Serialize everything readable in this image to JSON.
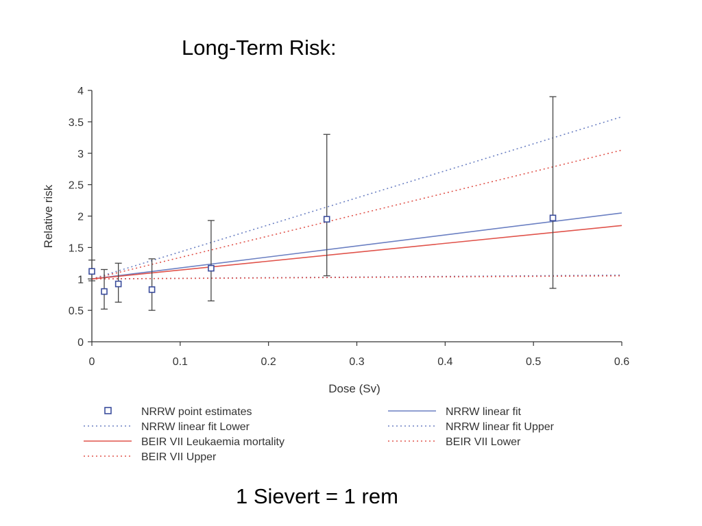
{
  "slide": {
    "title": "Long-Term Risk:",
    "footer": "1 Sievert = 1 rem"
  },
  "colors": {
    "blue": "#6a7fc2",
    "red": "#e0524a",
    "axis": "#333333",
    "marker": "#3a4c9c",
    "errorbar": "#444444"
  },
  "chart_data": {
    "type": "scatter",
    "title": "",
    "xlabel": "Dose (Sv)",
    "ylabel": "Relative risk",
    "xlim": [
      0,
      0.6
    ],
    "ylim": [
      0,
      4
    ],
    "xticks": [
      0,
      0.1,
      0.2,
      0.3,
      0.4,
      0.5,
      0.6
    ],
    "xtick_labels": [
      "0",
      "0.1",
      "0.2",
      "0.3",
      "0.4",
      "0.5",
      "0.6"
    ],
    "yticks": [
      0,
      0.5,
      1,
      1.5,
      2,
      2.5,
      3,
      3.5,
      4
    ],
    "ytick_labels": [
      "0",
      "0.5",
      "1",
      "1.5",
      "2",
      "2.5",
      "3",
      "3.5",
      "4"
    ],
    "grid": false,
    "points": {
      "name": "NRRW point estimates",
      "x": [
        0,
        0.014,
        0.03,
        0.068,
        0.135,
        0.266,
        0.522
      ],
      "y": [
        1.12,
        0.8,
        0.92,
        0.83,
        1.17,
        1.95,
        1.97
      ],
      "lower": [
        0.97,
        0.52,
        0.63,
        0.5,
        0.65,
        1.05,
        0.85
      ],
      "upper": [
        1.3,
        1.15,
        1.25,
        1.32,
        1.93,
        3.3,
        3.9
      ]
    },
    "series": [
      {
        "name": "NRRW linear fit",
        "style": "solid",
        "color": "blue",
        "x": [
          0,
          0.6
        ],
        "y": [
          1.0,
          2.05
        ]
      },
      {
        "name": "NRRW linear fit Lower",
        "style": "dotted",
        "color": "blue",
        "x": [
          0,
          0.6
        ],
        "y": [
          1.0,
          1.06
        ]
      },
      {
        "name": "NRRW linear fit Upper",
        "style": "dotted",
        "color": "blue",
        "x": [
          0,
          0.6
        ],
        "y": [
          1.0,
          3.58
        ]
      },
      {
        "name": "BEIR VII Leukaemia mortality",
        "style": "solid",
        "color": "red",
        "x": [
          0,
          0.6
        ],
        "y": [
          1.0,
          1.85
        ]
      },
      {
        "name": "BEIR VII Lower",
        "style": "dotted",
        "color": "red",
        "x": [
          0,
          0.6
        ],
        "y": [
          1.0,
          1.05
        ]
      },
      {
        "name": "BEIR VII Upper",
        "style": "dotted",
        "color": "red",
        "x": [
          0,
          0.6
        ],
        "y": [
          1.0,
          3.05
        ]
      }
    ],
    "legend": {
      "placement": "bottom",
      "left": [
        {
          "label": "NRRW point estimates",
          "kind": "marker"
        },
        {
          "label": "NRRW linear fit Lower",
          "kind": "blue-dotted"
        },
        {
          "label": "BEIR VII Leukaemia mortality",
          "kind": "red-solid"
        },
        {
          "label": "BEIR VII Upper",
          "kind": "red-dotted"
        }
      ],
      "right": [
        {
          "label": "NRRW linear fit",
          "kind": "blue-solid"
        },
        {
          "label": "NRRW linear fit Upper",
          "kind": "blue-dotted"
        },
        {
          "label": "BEIR VII Lower",
          "kind": "red-dotted"
        }
      ]
    }
  }
}
